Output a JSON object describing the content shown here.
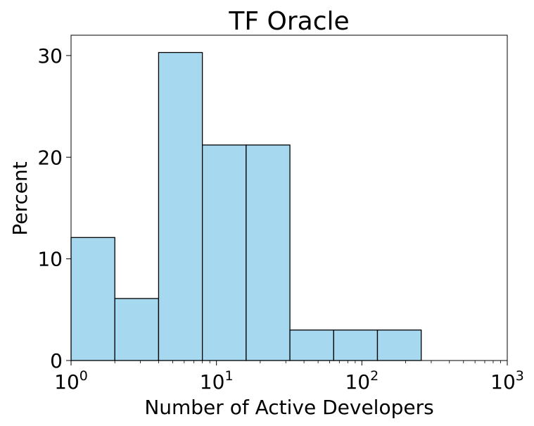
{
  "chart_data": {
    "type": "bar",
    "title": "TF Oracle",
    "xlabel": "Number of Active Developers",
    "ylabel": "Percent",
    "x_scale": "log",
    "xlim": [
      1,
      1000
    ],
    "ylim": [
      0,
      32
    ],
    "grid": false,
    "bar_color": "#a6d9ef",
    "bar_edge_color": "#000000",
    "bins": [
      {
        "x_start": 1,
        "x_end": 2,
        "value": 12.1
      },
      {
        "x_start": 2,
        "x_end": 4,
        "value": 6.1
      },
      {
        "x_start": 4,
        "x_end": 8,
        "value": 30.3
      },
      {
        "x_start": 8,
        "x_end": 16,
        "value": 21.2
      },
      {
        "x_start": 16,
        "x_end": 32,
        "value": 21.2
      },
      {
        "x_start": 32,
        "x_end": 64,
        "value": 3.0
      },
      {
        "x_start": 64,
        "x_end": 128,
        "value": 3.0
      },
      {
        "x_start": 128,
        "x_end": 256,
        "value": 3.0
      }
    ],
    "y_ticks": [
      {
        "value": 0,
        "label": "0"
      },
      {
        "value": 10,
        "label": "10"
      },
      {
        "value": 20,
        "label": "20"
      },
      {
        "value": 30,
        "label": "30"
      }
    ],
    "x_ticks": [
      {
        "value": 1,
        "base": "10",
        "exp": "0"
      },
      {
        "value": 10,
        "base": "10",
        "exp": "1"
      },
      {
        "value": 100,
        "base": "10",
        "exp": "2"
      },
      {
        "value": 1000,
        "base": "10",
        "exp": "3"
      }
    ]
  }
}
